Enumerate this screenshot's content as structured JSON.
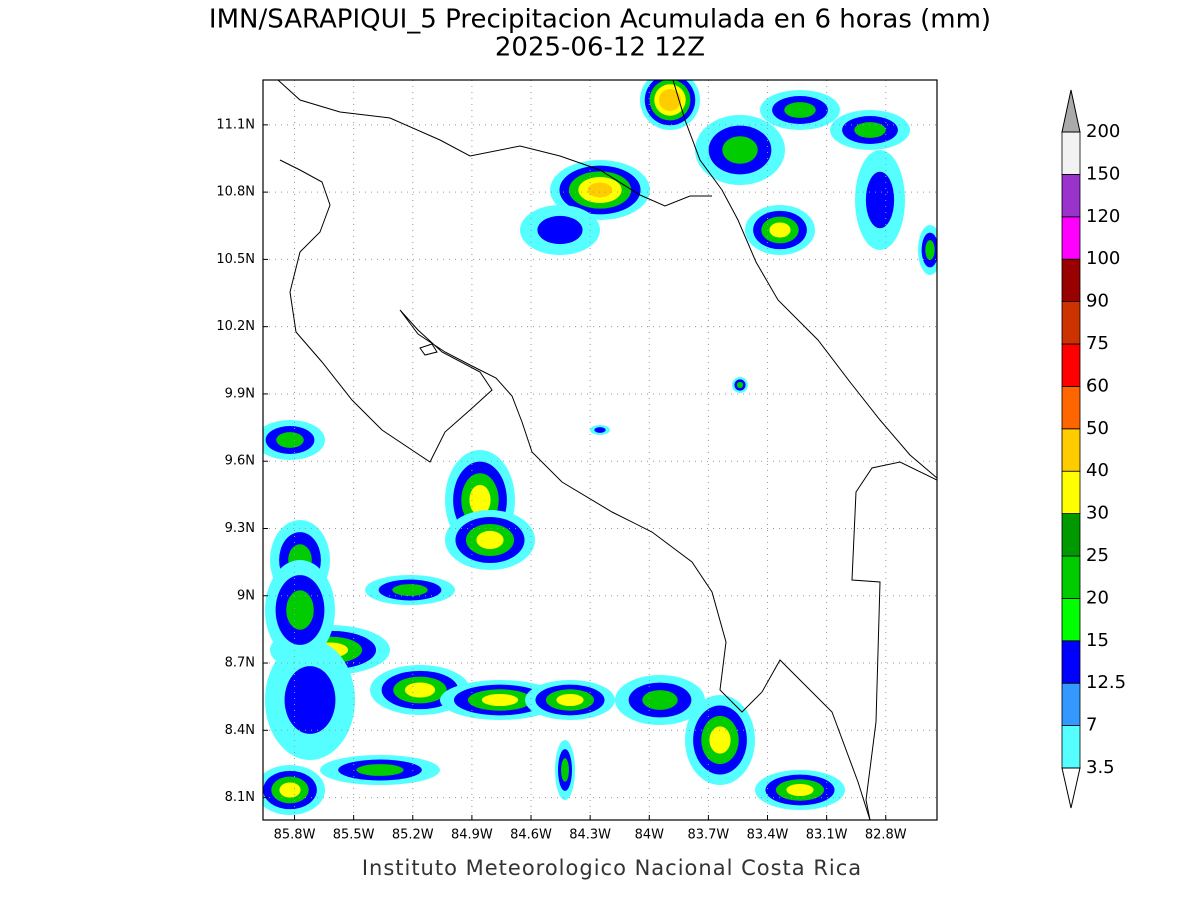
{
  "map": {
    "title": "IMN/SARAPIQUI_5 Precipitacion Acumulada en 6 horas (mm)",
    "subtitle": "2025-06-12 12Z",
    "footer": "Instituto Meteorologico Nacional Costa Rica",
    "xlim": [
      -85.96,
      -82.54
    ],
    "ylim": [
      8.0,
      11.3
    ],
    "xticks": [
      {
        "value": -85.8,
        "label": "85.8W"
      },
      {
        "value": -85.5,
        "label": "85.5W"
      },
      {
        "value": -85.2,
        "label": "85.2W"
      },
      {
        "value": -84.9,
        "label": "84.9W"
      },
      {
        "value": -84.6,
        "label": "84.6W"
      },
      {
        "value": -84.3,
        "label": "84.3W"
      },
      {
        "value": -84.0,
        "label": "84W"
      },
      {
        "value": -83.7,
        "label": "83.7W"
      },
      {
        "value": -83.4,
        "label": "83.4W"
      },
      {
        "value": -83.1,
        "label": "83.1W"
      },
      {
        "value": -82.8,
        "label": "82.8W"
      }
    ],
    "yticks": [
      {
        "value": 8.1,
        "label": "8.1N"
      },
      {
        "value": 8.4,
        "label": "8.4N"
      },
      {
        "value": 8.7,
        "label": "8.7N"
      },
      {
        "value": 9.0,
        "label": "9N"
      },
      {
        "value": 9.3,
        "label": "9.3N"
      },
      {
        "value": 9.6,
        "label": "9.6N"
      },
      {
        "value": 9.9,
        "label": "9.9N"
      },
      {
        "value": 10.2,
        "label": "10.2N"
      },
      {
        "value": 10.5,
        "label": "10.5N"
      },
      {
        "value": 10.8,
        "label": "10.8N"
      },
      {
        "value": 11.1,
        "label": "11.1N"
      }
    ],
    "grid": true,
    "colorbar": {
      "levels": [
        3.5,
        7,
        12.5,
        15,
        20,
        25,
        30,
        40,
        50,
        60,
        75,
        90,
        100,
        120,
        150,
        200
      ],
      "colors": [
        "#55ffff",
        "#3399ff",
        "#0000ff",
        "#00ff00",
        "#00cc00",
        "#009900",
        "#ffff00",
        "#ffcc00",
        "#ff6600",
        "#ff0000",
        "#cc3300",
        "#990000",
        "#ff00ff",
        "#9933cc",
        "#f2f2f2"
      ],
      "under_color": "#ffffff",
      "over_color": "#aaaaaa"
    }
  }
}
